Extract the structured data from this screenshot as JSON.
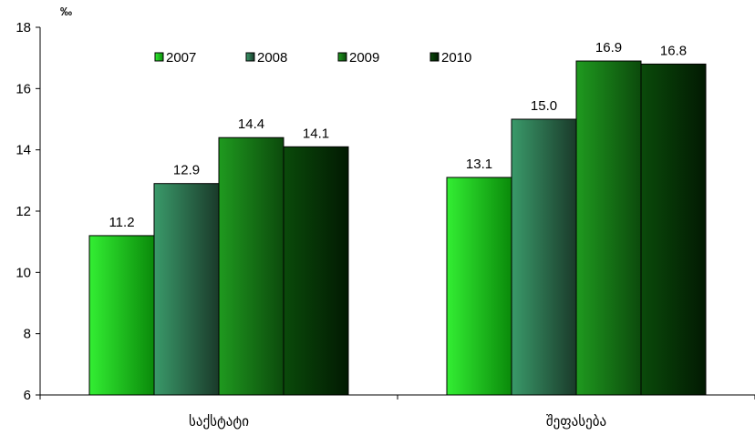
{
  "chart_data": {
    "type": "bar",
    "unit": "‰",
    "categories": [
      "საქსტატი",
      "შეფასება"
    ],
    "series": [
      {
        "name": "2007",
        "values": [
          11.2,
          13.1
        ],
        "color_top": "#33ee33",
        "color_bottom": "#0a8a0a"
      },
      {
        "name": "2008",
        "values": [
          12.9,
          15.0
        ],
        "color_top": "#3a9a6a",
        "color_bottom": "#1a3a2a"
      },
      {
        "name": "2009",
        "values": [
          14.4,
          16.9
        ],
        "color_top": "#1f9a1f",
        "color_bottom": "#0c4a0c"
      },
      {
        "name": "2010",
        "values": [
          14.1,
          16.8
        ],
        "color_top": "#0a4a0a",
        "color_bottom": "#021a02"
      }
    ],
    "ylim": [
      6,
      18
    ],
    "yticks": [
      6,
      8,
      10,
      12,
      14,
      16,
      18
    ],
    "data_labels": [
      [
        "11.2",
        "13.1"
      ],
      [
        "12.9",
        "15.0"
      ],
      [
        "14.4",
        "16.9"
      ],
      [
        "14.1",
        "16.8"
      ]
    ],
    "legend_position": "top-center",
    "grid": false
  }
}
